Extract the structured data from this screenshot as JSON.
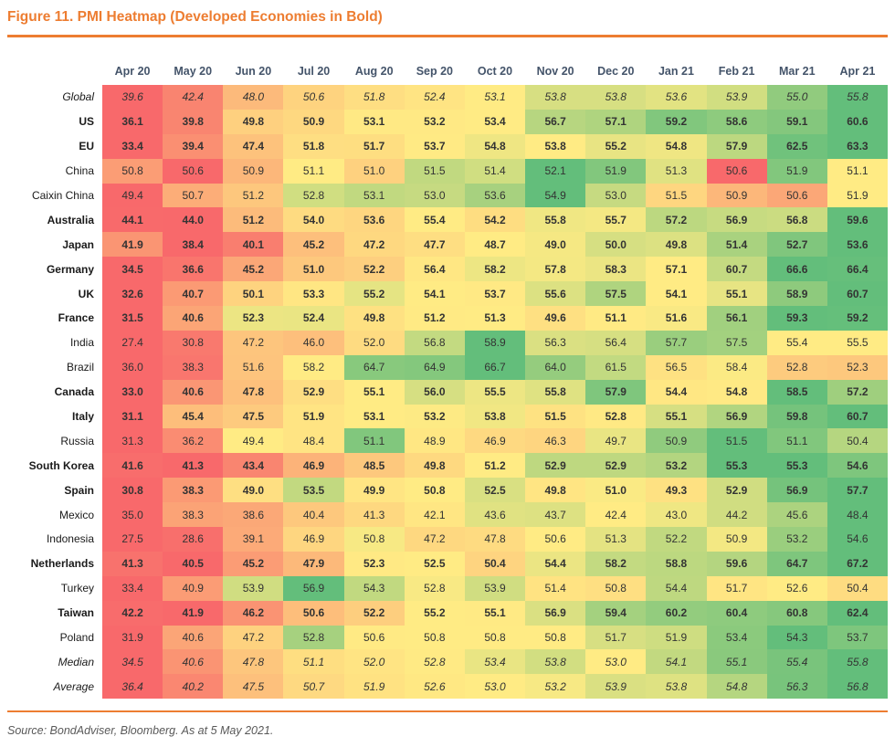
{
  "chart_data": {
    "type": "heatmap",
    "title": "Figure 11. PMI Heatmap (Developed Economies in Bold)",
    "source": "Source: BondAdviser, Bloomberg. As at 5 May 2021.",
    "columns": [
      "Apr 20",
      "May 20",
      "Jun 20",
      "Jul 20",
      "Aug 20",
      "Sep 20",
      "Oct 20",
      "Nov 20",
      "Dec 20",
      "Jan 21",
      "Feb 21",
      "Mar 21",
      "Apr 21"
    ],
    "rows": [
      {
        "label": "Global",
        "style": "italic",
        "values": [
          39.6,
          42.4,
          48.0,
          50.6,
          51.8,
          52.4,
          53.1,
          53.8,
          53.8,
          53.6,
          53.9,
          55.0,
          55.8
        ]
      },
      {
        "label": "US",
        "style": "bold",
        "values": [
          36.1,
          39.8,
          49.8,
          50.9,
          53.1,
          53.2,
          53.4,
          56.7,
          57.1,
          59.2,
          58.6,
          59.1,
          60.6
        ]
      },
      {
        "label": "EU",
        "style": "bold",
        "values": [
          33.4,
          39.4,
          47.4,
          51.8,
          51.7,
          53.7,
          54.8,
          53.8,
          55.2,
          54.8,
          57.9,
          62.5,
          63.3
        ]
      },
      {
        "label": "China",
        "style": "regular",
        "values": [
          50.8,
          50.6,
          50.9,
          51.1,
          51.0,
          51.5,
          51.4,
          52.1,
          51.9,
          51.3,
          50.6,
          51.9,
          51.1
        ]
      },
      {
        "label": "Caixin China",
        "style": "regular",
        "values": [
          49.4,
          50.7,
          51.2,
          52.8,
          53.1,
          53.0,
          53.6,
          54.9,
          53.0,
          51.5,
          50.9,
          50.6,
          51.9
        ]
      },
      {
        "label": "Australia",
        "style": "bold",
        "values": [
          44.1,
          44.0,
          51.2,
          54.0,
          53.6,
          55.4,
          54.2,
          55.8,
          55.7,
          57.2,
          56.9,
          56.8,
          59.6
        ]
      },
      {
        "label": "Japan",
        "style": "bold",
        "values": [
          41.9,
          38.4,
          40.1,
          45.2,
          47.2,
          47.7,
          48.7,
          49.0,
          50.0,
          49.8,
          51.4,
          52.7,
          53.6
        ]
      },
      {
        "label": "Germany",
        "style": "bold",
        "values": [
          34.5,
          36.6,
          45.2,
          51.0,
          52.2,
          56.4,
          58.2,
          57.8,
          58.3,
          57.1,
          60.7,
          66.6,
          66.4
        ]
      },
      {
        "label": "UK",
        "style": "bold",
        "values": [
          32.6,
          40.7,
          50.1,
          53.3,
          55.2,
          54.1,
          53.7,
          55.6,
          57.5,
          54.1,
          55.1,
          58.9,
          60.7
        ]
      },
      {
        "label": "France",
        "style": "bold",
        "values": [
          31.5,
          40.6,
          52.3,
          52.4,
          49.8,
          51.2,
          51.3,
          49.6,
          51.1,
          51.6,
          56.1,
          59.3,
          59.2
        ]
      },
      {
        "label": "India",
        "style": "regular",
        "values": [
          27.4,
          30.8,
          47.2,
          46.0,
          52.0,
          56.8,
          58.9,
          56.3,
          56.4,
          57.7,
          57.5,
          55.4,
          55.5
        ]
      },
      {
        "label": "Brazil",
        "style": "regular",
        "values": [
          36.0,
          38.3,
          51.6,
          58.2,
          64.7,
          64.9,
          66.7,
          64.0,
          61.5,
          56.5,
          58.4,
          52.8,
          52.3
        ]
      },
      {
        "label": "Canada",
        "style": "bold",
        "values": [
          33.0,
          40.6,
          47.8,
          52.9,
          55.1,
          56.0,
          55.5,
          55.8,
          57.9,
          54.4,
          54.8,
          58.5,
          57.2
        ]
      },
      {
        "label": "Italy",
        "style": "bold",
        "values": [
          31.1,
          45.4,
          47.5,
          51.9,
          53.1,
          53.2,
          53.8,
          51.5,
          52.8,
          55.1,
          56.9,
          59.8,
          60.7
        ]
      },
      {
        "label": "Russia",
        "style": "regular",
        "values": [
          31.3,
          36.2,
          49.4,
          48.4,
          51.1,
          48.9,
          46.9,
          46.3,
          49.7,
          50.9,
          51.5,
          51.1,
          50.4
        ]
      },
      {
        "label": "South Korea",
        "style": "bold",
        "values": [
          41.6,
          41.3,
          43.4,
          46.9,
          48.5,
          49.8,
          51.2,
          52.9,
          52.9,
          53.2,
          55.3,
          55.3,
          54.6
        ]
      },
      {
        "label": "Spain",
        "style": "bold",
        "values": [
          30.8,
          38.3,
          49.0,
          53.5,
          49.9,
          50.8,
          52.5,
          49.8,
          51.0,
          49.3,
          52.9,
          56.9,
          57.7
        ]
      },
      {
        "label": "Mexico",
        "style": "regular",
        "values": [
          35.0,
          38.3,
          38.6,
          40.4,
          41.3,
          42.1,
          43.6,
          43.7,
          42.4,
          43.0,
          44.2,
          45.6,
          48.4
        ]
      },
      {
        "label": "Indonesia",
        "style": "regular",
        "values": [
          27.5,
          28.6,
          39.1,
          46.9,
          50.8,
          47.2,
          47.8,
          50.6,
          51.3,
          52.2,
          50.9,
          53.2,
          54.6
        ]
      },
      {
        "label": "Netherlands",
        "style": "bold",
        "values": [
          41.3,
          40.5,
          45.2,
          47.9,
          52.3,
          52.5,
          50.4,
          54.4,
          58.2,
          58.8,
          59.6,
          64.7,
          67.2
        ]
      },
      {
        "label": "Turkey",
        "style": "regular",
        "values": [
          33.4,
          40.9,
          53.9,
          56.9,
          54.3,
          52.8,
          53.9,
          51.4,
          50.8,
          54.4,
          51.7,
          52.6,
          50.4
        ]
      },
      {
        "label": "Taiwan",
        "style": "bold",
        "values": [
          42.2,
          41.9,
          46.2,
          50.6,
          52.2,
          55.2,
          55.1,
          56.9,
          59.4,
          60.2,
          60.4,
          60.8,
          62.4
        ]
      },
      {
        "label": "Poland",
        "style": "regular",
        "values": [
          31.9,
          40.6,
          47.2,
          52.8,
          50.6,
          50.8,
          50.8,
          50.8,
          51.7,
          51.9,
          53.4,
          54.3,
          53.7
        ]
      },
      {
        "label": "Median",
        "style": "italic",
        "values": [
          34.5,
          40.6,
          47.8,
          51.1,
          52.0,
          52.8,
          53.4,
          53.8,
          53.0,
          54.1,
          55.1,
          55.4,
          55.8
        ]
      },
      {
        "label": "Average",
        "style": "italic",
        "values": [
          36.4,
          40.2,
          47.5,
          50.7,
          51.9,
          52.6,
          53.0,
          53.2,
          53.9,
          53.8,
          54.8,
          56.3,
          56.8
        ]
      }
    ],
    "color_scale": {
      "low": "#F8696B",
      "mid": "#FFEB84",
      "high": "#63BE7B",
      "mode": "per-row min to median to max"
    },
    "value_format": "1-decimal",
    "legend_position": "none",
    "grid": false,
    "colors": {
      "accent": "#ED7D31",
      "header_text": "#44546A",
      "cell_text": "#333333",
      "source_text": "#595959"
    }
  }
}
